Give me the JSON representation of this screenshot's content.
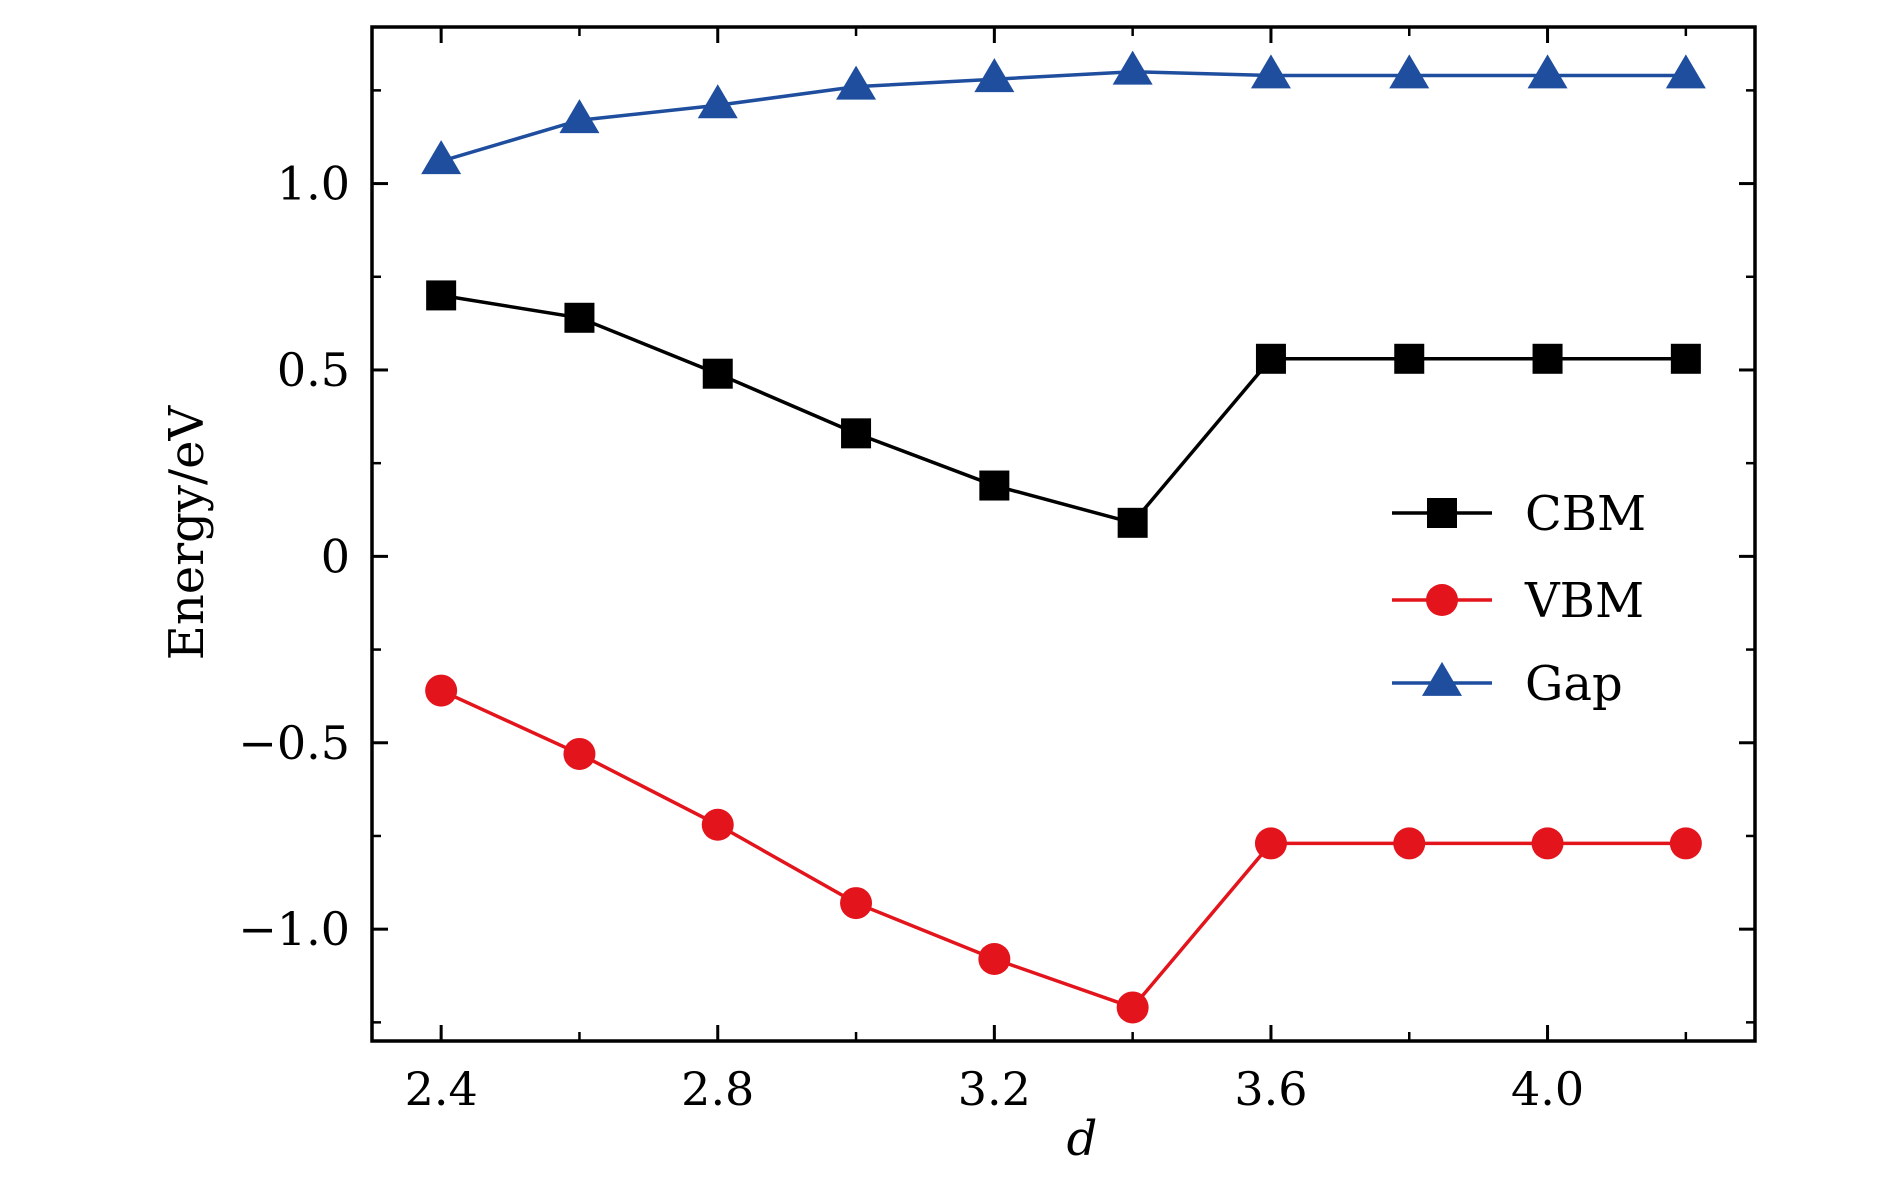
{
  "chart_data": {
    "type": "line",
    "title": "",
    "xlabel": "d",
    "ylabel": "Energy/eV",
    "xlim": [
      2.3,
      4.3
    ],
    "ylim": [
      -1.3,
      1.42
    ],
    "xticks": [
      2.4,
      2.8,
      3.2,
      3.6,
      4.0
    ],
    "xtick_labels": [
      "2.4",
      "2.8",
      "3.2",
      "3.6",
      "4.0"
    ],
    "yticks": [
      -1.0,
      -0.5,
      0,
      0.5,
      1.0
    ],
    "ytick_labels": [
      "−1.0",
      "−0.5",
      "0",
      "0.5",
      "1.0"
    ],
    "x": [
      2.4,
      2.6,
      2.8,
      3.0,
      3.2,
      3.4,
      3.6,
      3.8,
      4.0,
      4.2
    ],
    "series": [
      {
        "name": "CBM",
        "marker": "square",
        "color": "#000000",
        "values": [
          0.7,
          0.64,
          0.49,
          0.33,
          0.19,
          0.09,
          0.53,
          0.53,
          0.53,
          0.53
        ]
      },
      {
        "name": "VBM",
        "marker": "circle",
        "color": "#e3141c",
        "values": [
          -0.36,
          -0.53,
          -0.72,
          -0.93,
          -1.08,
          -1.21,
          -0.77,
          -0.77,
          -0.77,
          -0.77
        ]
      },
      {
        "name": "Gap",
        "marker": "triangle",
        "color": "#1f4e9f",
        "values": [
          1.06,
          1.17,
          1.21,
          1.26,
          1.28,
          1.3,
          1.29,
          1.29,
          1.29,
          1.29
        ]
      }
    ],
    "legend_position": "center-right",
    "grid": false
  }
}
